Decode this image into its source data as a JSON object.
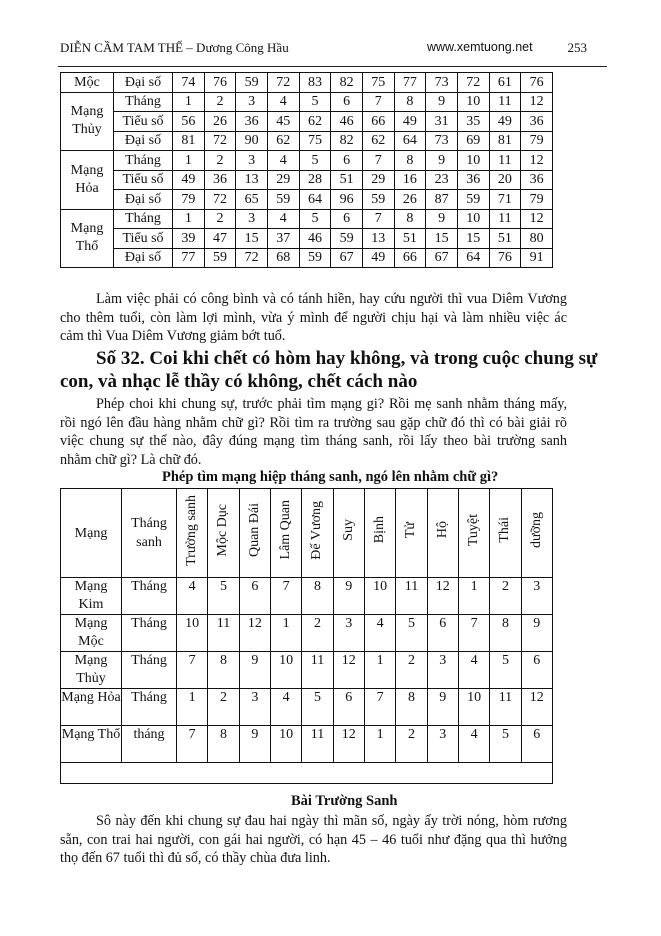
{
  "header": {
    "title": "DIỄN CẦM TAM THẾ – Dương Công Hầu",
    "site": "www.xemtuong.net",
    "page": "253"
  },
  "table1": {
    "rows": [
      {
        "group": "Mộc",
        "label": "Đại số",
        "values": [
          "74",
          "76",
          "59",
          "72",
          "83",
          "82",
          "75",
          "77",
          "73",
          "72",
          "61",
          "76"
        ]
      },
      {
        "group": "Mạng Thủy",
        "label": "Tháng",
        "values": [
          "1",
          "2",
          "3",
          "4",
          "5",
          "6",
          "7",
          "8",
          "9",
          "10",
          "11",
          "12"
        ]
      },
      {
        "group": "",
        "label": "Tiểu số",
        "values": [
          "56",
          "26",
          "36",
          "45",
          "62",
          "46",
          "66",
          "49",
          "31",
          "35",
          "49",
          "36"
        ]
      },
      {
        "group": "",
        "label": "Đại số",
        "values": [
          "81",
          "72",
          "90",
          "62",
          "75",
          "82",
          "62",
          "64",
          "73",
          "69",
          "81",
          "79"
        ]
      },
      {
        "group": "Mạng Hỏa",
        "label": "Tháng",
        "values": [
          "1",
          "2",
          "3",
          "4",
          "5",
          "6",
          "7",
          "8",
          "9",
          "10",
          "11",
          "12"
        ]
      },
      {
        "group": "",
        "label": "Tiểu số",
        "values": [
          "49",
          "36",
          "13",
          "29",
          "28",
          "51",
          "29",
          "16",
          "23",
          "36",
          "20",
          "36"
        ]
      },
      {
        "group": "",
        "label": "Đại số",
        "values": [
          "79",
          "72",
          "65",
          "59",
          "64",
          "96",
          "59",
          "26",
          "87",
          "59",
          "71",
          "79"
        ]
      },
      {
        "group": "Mạng Thổ",
        "label": "Tháng",
        "values": [
          "1",
          "2",
          "3",
          "4",
          "5",
          "6",
          "7",
          "8",
          "9",
          "10",
          "11",
          "12"
        ]
      },
      {
        "group": "",
        "label": "Tiểu số",
        "values": [
          "39",
          "47",
          "15",
          "37",
          "46",
          "59",
          "13",
          "51",
          "15",
          "15",
          "51",
          "80"
        ]
      },
      {
        "group": "",
        "label": "Đại số",
        "values": [
          "77",
          "59",
          "72",
          "68",
          "59",
          "67",
          "49",
          "66",
          "67",
          "64",
          "76",
          "91"
        ]
      }
    ]
  },
  "para1": [
    "Làm việc phải có công bình và có tánh hiền, hay cứu người thì vua Diêm Vương",
    "cho thêm tuổi, còn làm lợi mình, vừa ý mình để người chịu hại và làm nhiều việc ác",
    "cảm thì Vua Diêm Vương giảm bớt tuổ."
  ],
  "heading": [
    "Số 32. Coi khi chết có hòm hay không, và trong cuộc chung sự",
    "con, và nhạc lễ thầy có không, chết cách nào"
  ],
  "para2": [
    "Phép choi khi chung sự, trước phải tìm mạng gi? Rồi mẹ sanh nhằm tháng mấy,",
    "rồi ngó lên đầu hàng nhằm chữ gì? Rồi tìm ra trường sau gặp chữ đó thì có bài giải rõ",
    "việc chung sự thể nào, đây đúng mạng tìm tháng sanh, rồi lấy theo bài trường sanh",
    "nhằm chữ gì? Là chữ đó."
  ],
  "table2": {
    "caption": "Phép tìm mạng hiệp tháng sanh, ngó lên nhằm chữ gì?",
    "col_mang": "Mạng",
    "col_thang": "Tháng sanh",
    "columns": [
      "Trường sanh",
      "Mộc Dục",
      "Quan Đái",
      "Lâm Quan",
      "Đế Vương",
      "Suy",
      "Bịnh",
      "Tử",
      "Hộ",
      "Tuyệt",
      "Thái",
      "dưỡng"
    ],
    "rows": [
      {
        "mang": "Mạng Kim",
        "thang": "Tháng",
        "values": [
          "4",
          "5",
          "6",
          "7",
          "8",
          "9",
          "10",
          "11",
          "12",
          "1",
          "2",
          "3"
        ]
      },
      {
        "mang": "Mạng Mộc",
        "thang": "Tháng",
        "values": [
          "10",
          "11",
          "12",
          "1",
          "2",
          "3",
          "4",
          "5",
          "6",
          "7",
          "8",
          "9"
        ]
      },
      {
        "mang": "Mạng Thủy",
        "thang": "Tháng",
        "values": [
          "7",
          "8",
          "9",
          "10",
          "11",
          "12",
          "1",
          "2",
          "3",
          "4",
          "5",
          "6"
        ]
      },
      {
        "mang": "Mạng Hỏa",
        "thang": "Tháng",
        "values": [
          "1",
          "2",
          "3",
          "4",
          "5",
          "6",
          "7",
          "8",
          "9",
          "10",
          "11",
          "12"
        ]
      },
      {
        "mang": "Mạng Thổ",
        "thang": "tháng",
        "values": [
          "7",
          "8",
          "9",
          "10",
          "11",
          "12",
          "1",
          "2",
          "3",
          "4",
          "5",
          "6"
        ]
      }
    ]
  },
  "section3": {
    "title": "Bài Trường Sanh",
    "para": [
      "Sô này đến khi chung sự đau hai ngày thì mãn số, ngày ấy trời nóng, hòm rương",
      "sẵn, con trai hai người, con gái hai người, có hạn 45 – 46 tuổi như đặng qua thì hưởng",
      "thọ đến 67 tuổi thì đủ số, có thầy chùa đưa linh."
    ]
  }
}
